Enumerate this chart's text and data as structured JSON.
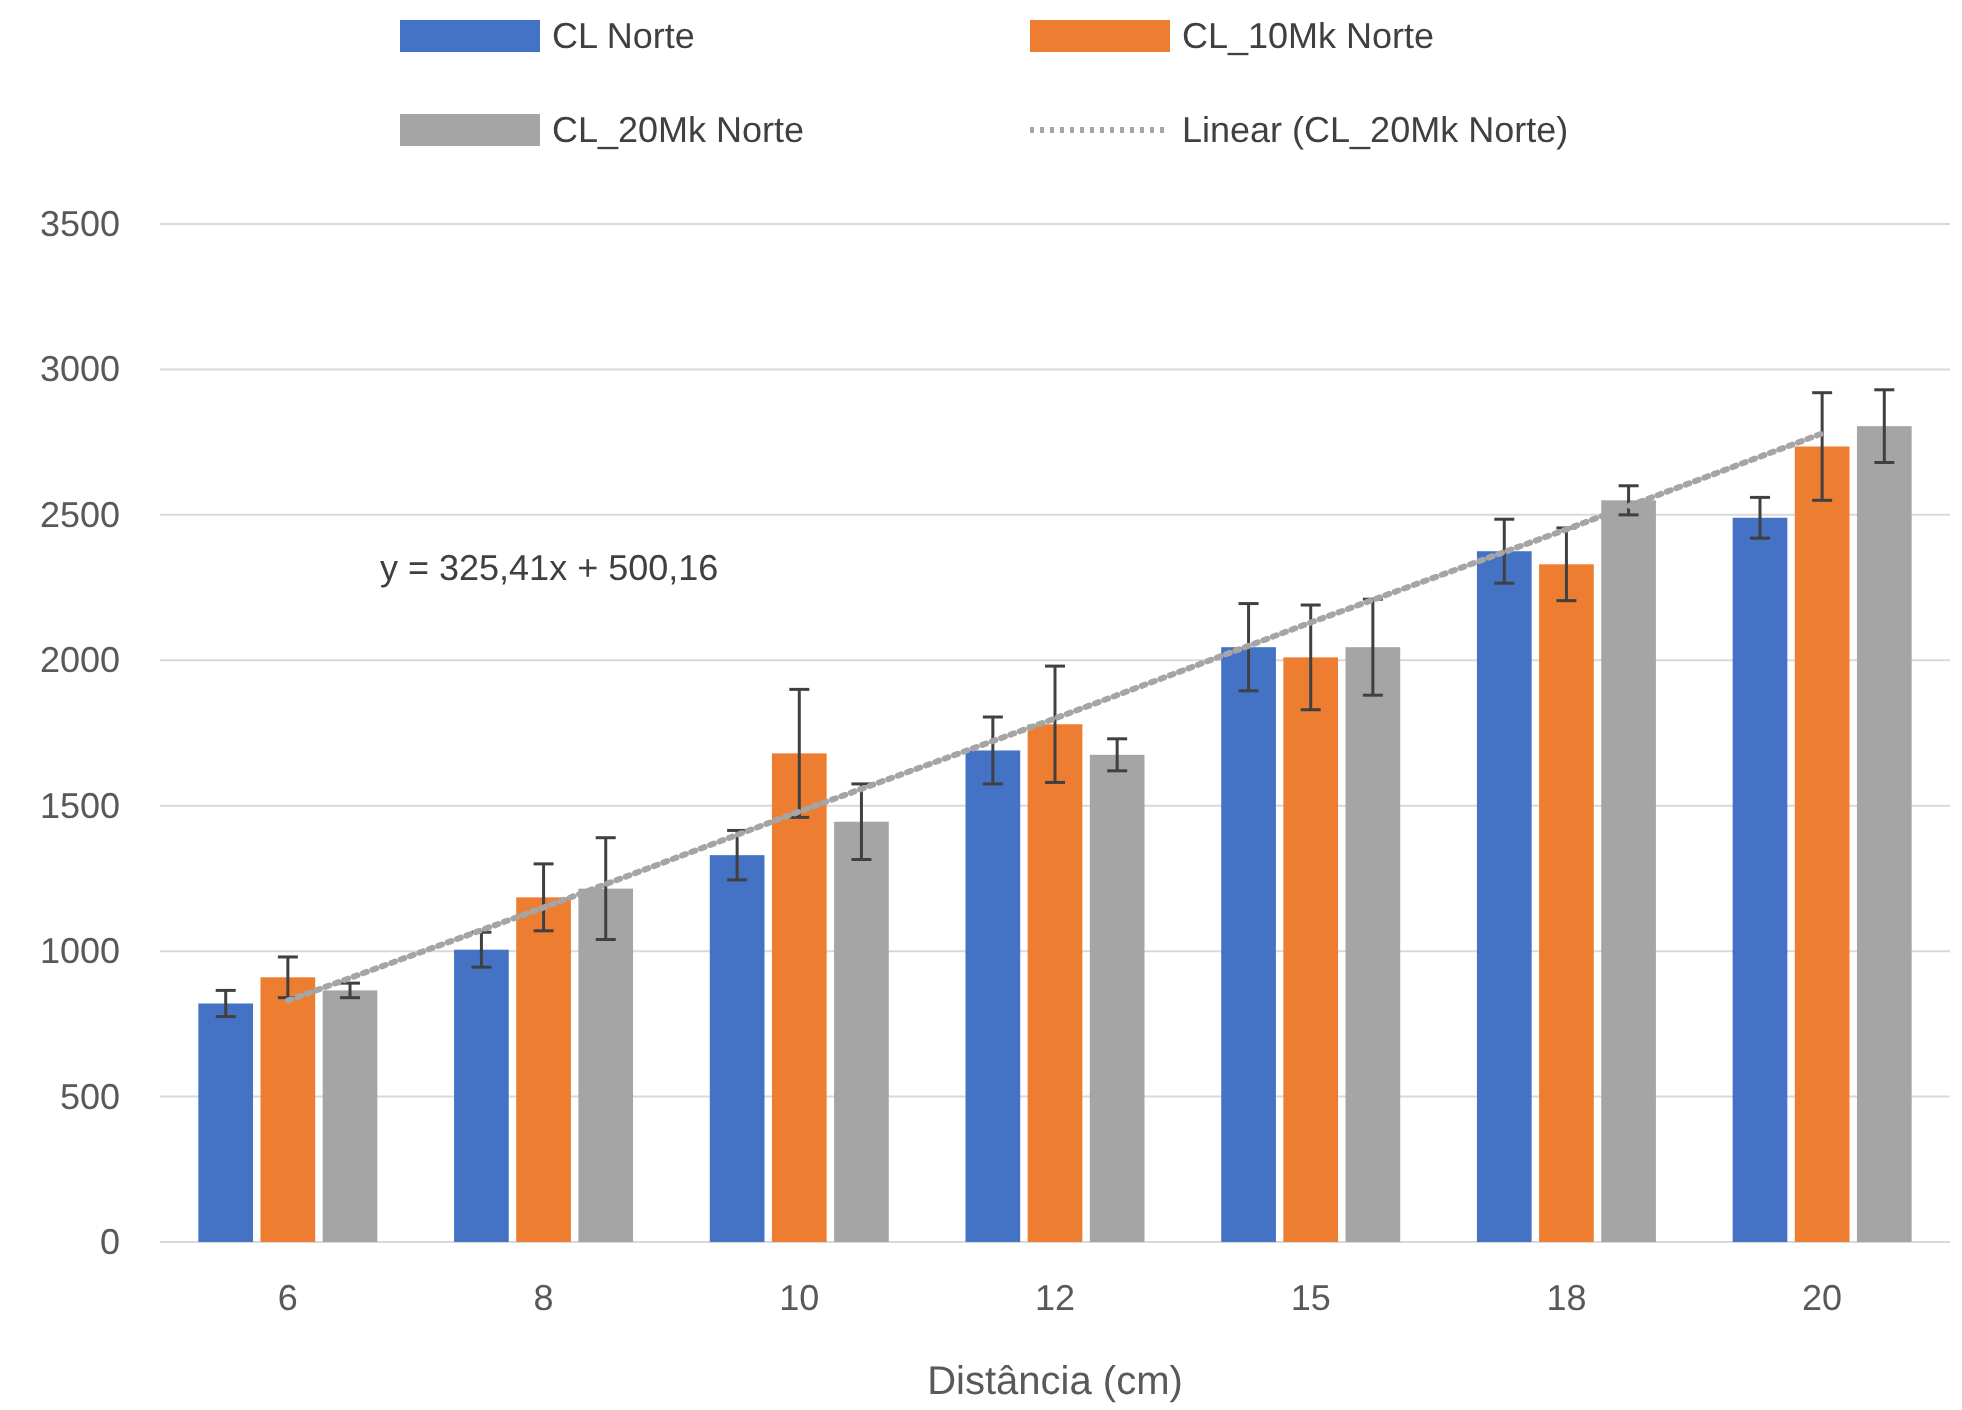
{
  "chart_data": {
    "type": "bar",
    "xlabel": "Distância (cm)",
    "categories": [
      "6",
      "8",
      "10",
      "12",
      "15",
      "18",
      "20"
    ],
    "series": [
      {
        "name": "CL Norte",
        "color": "#4472c4",
        "values": [
          820,
          1005,
          1330,
          1690,
          2045,
          2375,
          2490
        ],
        "errors": [
          45,
          60,
          85,
          115,
          150,
          110,
          70
        ]
      },
      {
        "name": "CL_10Mk Norte",
        "color": "#ed7d31",
        "values": [
          910,
          1185,
          1680,
          1780,
          2010,
          2330,
          2735
        ],
        "errors": [
          70,
          115,
          220,
          200,
          180,
          125,
          185
        ]
      },
      {
        "name": "CL_20Mk Norte",
        "color": "#a5a5a5",
        "values": [
          865,
          1215,
          1445,
          1675,
          2045,
          2550,
          2805
        ],
        "errors": [
          25,
          175,
          130,
          55,
          165,
          50,
          125
        ]
      },
      {
        "name": "Linear (CL_20Mk Norte)",
        "type": "line",
        "color": "#a5a5a5",
        "line_style": "dotted",
        "values": [
          830,
          1150,
          1480,
          1800,
          2130,
          2450,
          2780
        ]
      }
    ],
    "ylim": [
      0,
      3500
    ],
    "yticks": [
      0,
      500,
      1000,
      1500,
      2000,
      2500,
      3000,
      3500
    ],
    "grid": "y",
    "legend": "top",
    "annotations": [
      "y = 325,41x + 500,16"
    ]
  }
}
